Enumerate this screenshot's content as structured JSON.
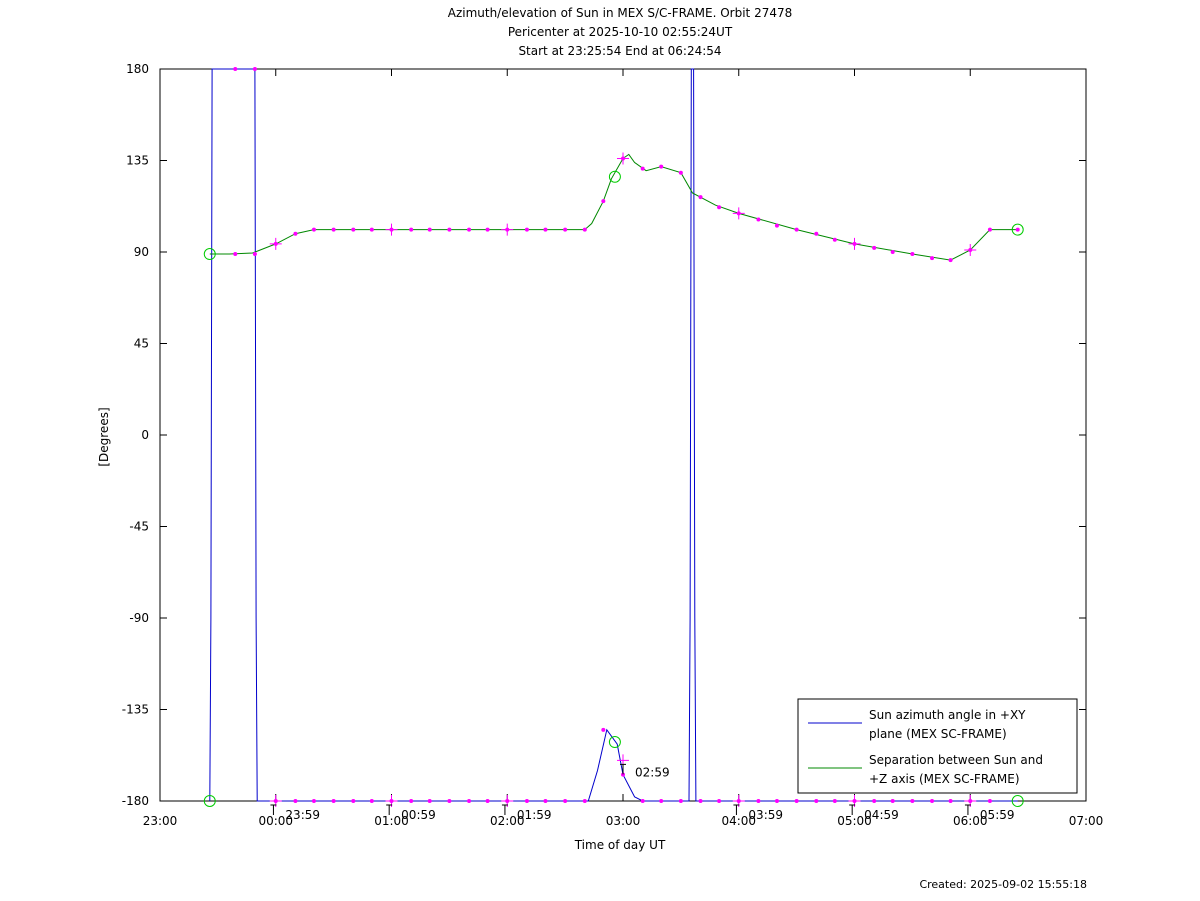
{
  "chart_data": {
    "type": "line",
    "title_lines": [
      "Azimuth/elevation of Sun in MEX S/C-FRAME.  Orbit 27478",
      "Pericenter at 2025-10-10 02:55:24UT",
      "Start at 23:25:54 End at 06:24:54"
    ],
    "xlabel": "Time of day UT",
    "ylabel": "[Degrees]",
    "xlim_hours": [
      23,
      31
    ],
    "ylim": [
      -180,
      180
    ],
    "x_ticks": [
      {
        "h": 23,
        "label": "23:00"
      },
      {
        "h": 24,
        "label": "00:00"
      },
      {
        "h": 25,
        "label": "01:00"
      },
      {
        "h": 26,
        "label": "02:00"
      },
      {
        "h": 27,
        "label": "03:00"
      },
      {
        "h": 28,
        "label": "04:00"
      },
      {
        "h": 29,
        "label": "05:00"
      },
      {
        "h": 30,
        "label": "06:00"
      },
      {
        "h": 31,
        "label": "07:00"
      }
    ],
    "y_ticks": [
      180,
      135,
      90,
      45,
      0,
      -45,
      -90,
      -135,
      -180
    ],
    "grid": false,
    "legend_position": "bottom-right",
    "series": [
      {
        "name": "Sun azimuth angle in +XY plane (MEX SC-FRAME)",
        "name_lines": [
          "Sun azimuth angle in +XY",
          "plane (MEX SC-FRAME)"
        ],
        "color": "#0000cc",
        "points_hours": [
          [
            23.43,
            -180
          ],
          [
            23.44,
            -90
          ],
          [
            23.45,
            180
          ],
          [
            23.82,
            180
          ],
          [
            23.83,
            -90
          ],
          [
            23.84,
            -180
          ],
          [
            24.0,
            -180
          ],
          [
            25.0,
            -180
          ],
          [
            26.0,
            -180
          ],
          [
            26.7,
            -180
          ],
          [
            26.78,
            -165
          ],
          [
            26.86,
            -145
          ],
          [
            26.95,
            -152
          ],
          [
            27.0,
            -167
          ],
          [
            27.1,
            -178
          ],
          [
            27.17,
            -180
          ],
          [
            27.57,
            -180
          ],
          [
            27.58,
            -90
          ],
          [
            27.59,
            180
          ],
          [
            27.61,
            180
          ],
          [
            27.62,
            -90
          ],
          [
            27.63,
            -180
          ],
          [
            28.0,
            -180
          ],
          [
            29.0,
            -180
          ],
          [
            30.0,
            -180
          ],
          [
            30.41,
            -180
          ]
        ]
      },
      {
        "name": "Separation between Sun and +Z axis (MEX SC-FRAME)",
        "name_lines": [
          "Separation between Sun and",
          "+Z axis (MEX SC-FRAME)"
        ],
        "color": "#008800",
        "points_hours": [
          [
            23.43,
            89
          ],
          [
            23.6,
            89
          ],
          [
            23.8,
            89.5
          ],
          [
            24.0,
            94
          ],
          [
            24.17,
            99
          ],
          [
            24.33,
            101
          ],
          [
            25.0,
            101
          ],
          [
            26.0,
            101
          ],
          [
            26.67,
            101
          ],
          [
            26.73,
            104
          ],
          [
            26.83,
            115
          ],
          [
            26.9,
            126
          ],
          [
            27.0,
            136
          ],
          [
            27.05,
            138
          ],
          [
            27.1,
            134
          ],
          [
            27.2,
            130
          ],
          [
            27.33,
            132
          ],
          [
            27.5,
            129
          ],
          [
            27.6,
            119
          ],
          [
            27.8,
            113
          ],
          [
            28.0,
            109
          ],
          [
            28.5,
            101
          ],
          [
            29.0,
            94
          ],
          [
            29.5,
            89
          ],
          [
            29.83,
            86
          ],
          [
            30.0,
            91
          ],
          [
            30.17,
            101
          ],
          [
            30.41,
            101
          ]
        ]
      }
    ],
    "marker_points": [
      [
        23.65,
        89
      ],
      [
        23.82,
        89
      ],
      [
        24.0,
        94
      ],
      [
        24.17,
        99
      ],
      [
        24.33,
        101
      ],
      [
        24.5,
        101
      ],
      [
        24.67,
        101
      ],
      [
        24.83,
        101
      ],
      [
        25.0,
        101
      ],
      [
        25.17,
        101
      ],
      [
        25.33,
        101
      ],
      [
        25.5,
        101
      ],
      [
        25.67,
        101
      ],
      [
        25.83,
        101
      ],
      [
        26.0,
        101
      ],
      [
        26.17,
        101
      ],
      [
        26.33,
        101
      ],
      [
        26.5,
        101
      ],
      [
        26.67,
        101
      ],
      [
        26.83,
        115
      ],
      [
        27.0,
        136
      ],
      [
        27.17,
        131
      ],
      [
        27.33,
        132
      ],
      [
        27.5,
        129
      ],
      [
        27.67,
        117
      ],
      [
        27.83,
        112
      ],
      [
        28.0,
        109
      ],
      [
        28.17,
        106
      ],
      [
        28.33,
        103
      ],
      [
        28.5,
        101
      ],
      [
        28.67,
        99
      ],
      [
        28.83,
        96
      ],
      [
        29.0,
        94
      ],
      [
        29.17,
        92
      ],
      [
        29.33,
        90
      ],
      [
        29.5,
        89
      ],
      [
        29.67,
        87
      ],
      [
        29.83,
        86
      ],
      [
        30.0,
        91
      ],
      [
        30.17,
        101
      ],
      [
        30.41,
        101
      ],
      [
        23.65,
        180
      ],
      [
        23.82,
        180
      ],
      [
        24.0,
        -180
      ],
      [
        24.17,
        -180
      ],
      [
        24.33,
        -180
      ],
      [
        24.5,
        -180
      ],
      [
        24.67,
        -180
      ],
      [
        24.83,
        -180
      ],
      [
        25.0,
        -180
      ],
      [
        25.17,
        -180
      ],
      [
        25.33,
        -180
      ],
      [
        25.5,
        -180
      ],
      [
        25.67,
        -180
      ],
      [
        25.83,
        -180
      ],
      [
        26.0,
        -180
      ],
      [
        26.17,
        -180
      ],
      [
        26.33,
        -180
      ],
      [
        26.5,
        -180
      ],
      [
        26.67,
        -180
      ],
      [
        26.83,
        -145
      ],
      [
        27.0,
        -167
      ],
      [
        27.17,
        -180
      ],
      [
        27.33,
        -180
      ],
      [
        27.5,
        -180
      ],
      [
        27.67,
        -180
      ],
      [
        27.83,
        -180
      ],
      [
        28.0,
        -180
      ],
      [
        28.17,
        -180
      ],
      [
        28.33,
        -180
      ],
      [
        28.5,
        -180
      ],
      [
        28.67,
        -180
      ],
      [
        28.83,
        -180
      ],
      [
        29.0,
        -180
      ],
      [
        29.17,
        -180
      ],
      [
        29.33,
        -180
      ],
      [
        29.5,
        -180
      ],
      [
        29.67,
        -180
      ],
      [
        29.83,
        -180
      ],
      [
        30.0,
        -180
      ],
      [
        30.17,
        -180
      ]
    ],
    "plus_markers": [
      [
        24.0,
        94
      ],
      [
        25.0,
        101
      ],
      [
        26.0,
        101
      ],
      [
        27.0,
        136
      ],
      [
        28.0,
        109
      ],
      [
        29.0,
        94
      ],
      [
        30.0,
        91
      ],
      [
        24.0,
        -180
      ],
      [
        25.0,
        -180
      ],
      [
        26.0,
        -180
      ],
      [
        27.0,
        -160
      ],
      [
        28.0,
        -180
      ],
      [
        29.0,
        -180
      ],
      [
        30.0,
        -180
      ]
    ],
    "circle_markers": [
      [
        23.43,
        89
      ],
      [
        26.93,
        127
      ],
      [
        30.41,
        101
      ],
      [
        23.43,
        -180
      ],
      [
        26.93,
        -151
      ],
      [
        30.41,
        -180
      ]
    ],
    "hour_labels": [
      {
        "h": 23.98,
        "y": -180,
        "label": "23:59"
      },
      {
        "h": 24.98,
        "y": -180,
        "label": "00:59"
      },
      {
        "h": 25.98,
        "y": -180,
        "label": "01:59"
      },
      {
        "h": 27.0,
        "y": -160,
        "label": "02:59"
      },
      {
        "h": 27.98,
        "y": -180,
        "label": "03:59"
      },
      {
        "h": 28.98,
        "y": -180,
        "label": "04:59"
      },
      {
        "h": 29.98,
        "y": -180,
        "label": "05:59"
      }
    ]
  },
  "footer": {
    "created": "Created: 2025-09-02 15:55:18"
  }
}
